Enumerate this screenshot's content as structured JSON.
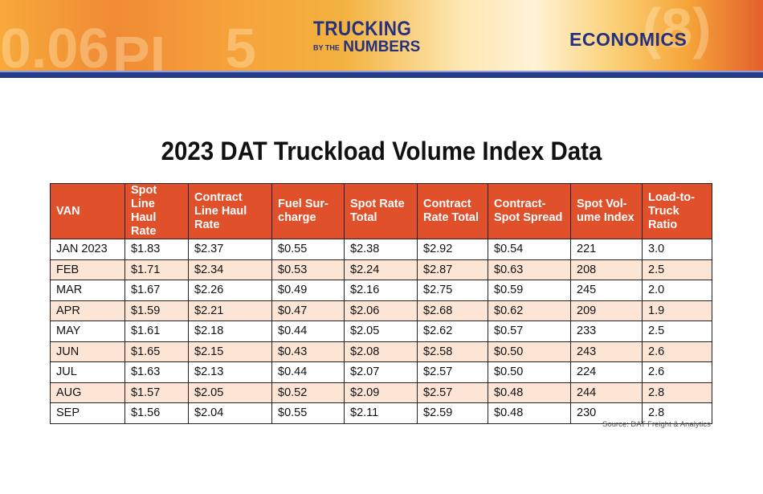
{
  "header": {
    "logo_line1": "TRUCKING",
    "logo_small": "BY THE",
    "logo_line2": "NUMBERS",
    "section": "ECONOMICS"
  },
  "title": "2023 DAT Truckload Volume Index Data",
  "table": {
    "columns": [
      "VAN",
      "Spot Line Haul Rate",
      "Contract Line Haul Rate",
      "Fuel Sur-charge",
      "Spot Rate Total",
      "Contract Rate Total",
      "Contract-Spot Spread",
      "Spot Vol-ume Index",
      "Load-to-Truck Ratio"
    ],
    "rows": [
      [
        "JAN 2023",
        "$1.83",
        "$2.37",
        "$0.55",
        "$2.38",
        "$2.92",
        "$0.54",
        "221",
        "3.0"
      ],
      [
        "FEB",
        "$1.71",
        "$2.34",
        "$0.53",
        "$2.24",
        "$2.87",
        "$0.63",
        "208",
        "2.5"
      ],
      [
        "MAR",
        "$1.67",
        "$2.26",
        "$0.49",
        "$2.16",
        "$2.75",
        "$0.59",
        "245",
        "2.0"
      ],
      [
        "APR",
        "$1.59",
        "$2.21",
        "$0.47",
        "$2.06",
        "$2.68",
        "$0.62",
        "209",
        "1.9"
      ],
      [
        "MAY",
        "$1.61",
        "$2.18",
        "$0.44",
        "$2.05",
        "$2.62",
        "$0.57",
        "233",
        "2.5"
      ],
      [
        "JUN",
        "$1.65",
        "$2.15",
        "$0.43",
        "$2.08",
        "$2.58",
        "$0.50",
        "243",
        "2.6"
      ],
      [
        "JUL",
        "$1.63",
        "$2.13",
        "$0.44",
        "$2.07",
        "$2.57",
        "$0.50",
        "224",
        "2.6"
      ],
      [
        "AUG",
        "$1.57",
        "$2.05",
        "$0.52",
        "$2.09",
        "$2.57",
        "$0.48",
        "244",
        "2.8"
      ],
      [
        "SEP",
        "$1.56",
        "$2.04",
        "$0.55",
        "$2.11",
        "$2.59",
        "$0.48",
        "230",
        "2.8"
      ]
    ]
  },
  "source": "Source: DAT Freight & Analytics",
  "colors": {
    "header_bg": "#e0502a",
    "alt_row": "#fde5d6",
    "brand_blue": "#25317e"
  }
}
